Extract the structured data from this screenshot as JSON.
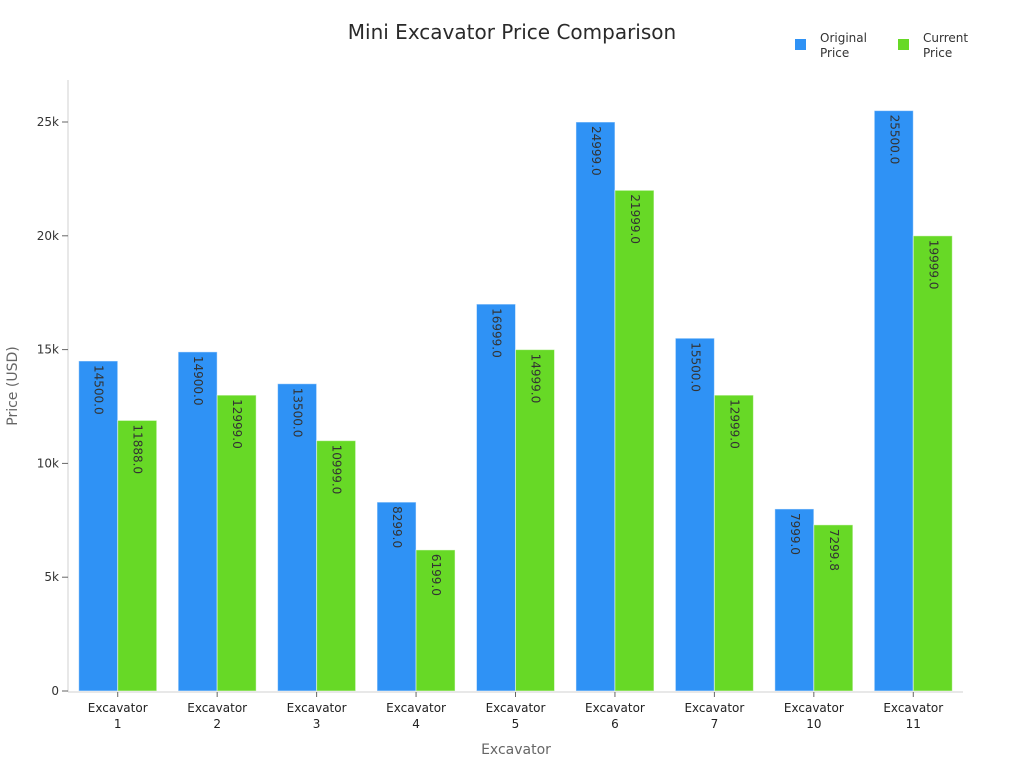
{
  "title": "Mini Excavator Price Comparison",
  "legend": [
    {
      "label": "Original Price",
      "line1": "Original",
      "line2": "Price",
      "color": "#2f92f5"
    },
    {
      "label": "Current Price",
      "line1": "Current",
      "line2": "Price",
      "color": "#67d926"
    }
  ],
  "axes": {
    "xlabel": "Excavator",
    "ylabel": "Price (USD)",
    "yticks": [
      {
        "value": 0,
        "label": "0"
      },
      {
        "value": 5000,
        "label": "5k"
      },
      {
        "value": 10000,
        "label": "10k"
      },
      {
        "value": 15000,
        "label": "15k"
      },
      {
        "value": 20000,
        "label": "20k"
      },
      {
        "value": 25000,
        "label": "25k"
      }
    ]
  },
  "chart_data": {
    "type": "bar",
    "title": "Mini Excavator Price Comparison",
    "xlabel": "Excavator",
    "ylabel": "Price (USD)",
    "categories": [
      "Excavator 1",
      "Excavator 2",
      "Excavator 3",
      "Excavator 4",
      "Excavator 5",
      "Excavator 6",
      "Excavator 7",
      "Excavator 10",
      "Excavator 11"
    ],
    "series": [
      {
        "name": "Original Price",
        "color": "#2f92f5",
        "values": [
          14500.0,
          14900.0,
          13500.0,
          8299.0,
          16999.0,
          24999.0,
          15500.0,
          7999.0,
          25500.0
        ]
      },
      {
        "name": "Current Price",
        "color": "#67d926",
        "values": [
          11888.0,
          12999.0,
          10999.0,
          6199.0,
          14999.0,
          21999.0,
          12999.0,
          7299.8,
          19999.0
        ]
      }
    ],
    "ylim": [
      0,
      26800
    ],
    "grid": false,
    "legend_position": "top-right",
    "data_labels": "rotated 90deg inside bar top, one decimal"
  }
}
